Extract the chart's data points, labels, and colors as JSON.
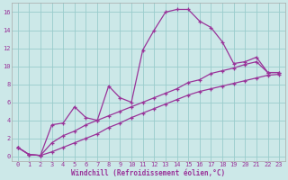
{
  "background_color": "#cce8e8",
  "grid_color": "#99cccc",
  "line_color": "#993399",
  "xlabel": "Windchill (Refroidissement éolien,°C)",
  "xlim": [
    -0.5,
    23.5
  ],
  "ylim": [
    -0.5,
    17
  ],
  "xticks": [
    0,
    1,
    2,
    3,
    4,
    5,
    6,
    7,
    8,
    9,
    10,
    11,
    12,
    13,
    14,
    15,
    16,
    17,
    18,
    19,
    20,
    21,
    22,
    23
  ],
  "yticks": [
    0,
    2,
    4,
    6,
    8,
    10,
    12,
    14,
    16
  ],
  "curve1_x": [
    0,
    1,
    2,
    3,
    4,
    5,
    6,
    7,
    8,
    9,
    10,
    11,
    12,
    13,
    14,
    15,
    16,
    17,
    18,
    19,
    20,
    21,
    22,
    23
  ],
  "curve1_y": [
    1.0,
    0.2,
    0.1,
    3.5,
    3.7,
    5.5,
    4.3,
    4.0,
    7.8,
    6.5,
    6.0,
    11.8,
    14.0,
    16.0,
    16.3,
    16.3,
    15.0,
    14.3,
    12.7,
    10.3,
    10.5,
    11.0,
    9.3,
    9.3
  ],
  "curve2_x": [
    0,
    1,
    2,
    3,
    4,
    5,
    6,
    7,
    8,
    9,
    10,
    11,
    12,
    13,
    14,
    15,
    16,
    17,
    18,
    19,
    20,
    21,
    22,
    23
  ],
  "curve2_y": [
    1.0,
    0.2,
    0.1,
    1.5,
    2.3,
    2.8,
    3.5,
    4.0,
    4.5,
    5.0,
    5.5,
    6.0,
    6.5,
    7.0,
    7.5,
    8.2,
    8.5,
    9.2,
    9.5,
    9.8,
    10.2,
    10.5,
    9.3,
    9.3
  ],
  "curve3_x": [
    0,
    1,
    2,
    3,
    4,
    5,
    6,
    7,
    8,
    9,
    10,
    11,
    12,
    13,
    14,
    15,
    16,
    17,
    18,
    19,
    20,
    21,
    22,
    23
  ],
  "curve3_y": [
    1.0,
    0.2,
    0.1,
    0.5,
    1.0,
    1.5,
    2.0,
    2.5,
    3.2,
    3.7,
    4.3,
    4.8,
    5.3,
    5.8,
    6.3,
    6.8,
    7.2,
    7.5,
    7.8,
    8.1,
    8.4,
    8.7,
    9.0,
    9.1
  ]
}
